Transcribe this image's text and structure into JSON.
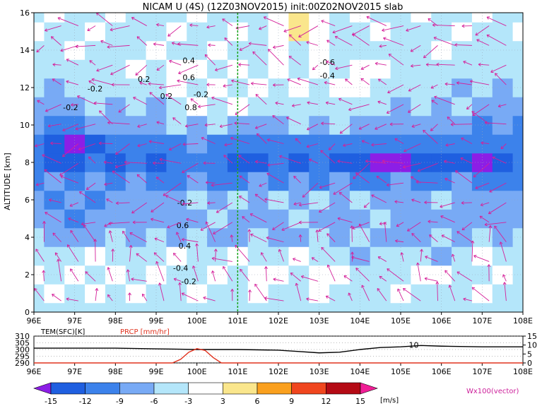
{
  "title": "NICAM U (4S) (12Z03NOV2015) init:00Z02NOV2015 slab",
  "chart_data": [
    {
      "type": "heatmap",
      "title": "NICAM U (4S) (12Z03NOV2015) init:00Z02NOV2015 slab",
      "ylabel": "ALTITUDE [km]",
      "xlim": [
        96,
        108
      ],
      "ylim": [
        0,
        16
      ],
      "x_ticks": [
        "96E",
        "97E",
        "98E",
        "99E",
        "100E",
        "101E",
        "102E",
        "103E",
        "104E",
        "105E",
        "106E",
        "107E",
        "108E"
      ],
      "y_ticks": [
        "0",
        "2",
        "4",
        "6",
        "8",
        "10",
        "12",
        "14",
        "16"
      ],
      "grid": true,
      "vertical_line_x": 101,
      "vector_legend": "Wx100(vector)",
      "contour_labels": [
        {
          "text": "-0.2",
          "x": 96.9,
          "y": 10.8
        },
        {
          "text": "-0.2",
          "x": 97.5,
          "y": 11.8
        },
        {
          "text": "0.2",
          "x": 98.7,
          "y": 12.3
        },
        {
          "text": "0.2",
          "x": 99.25,
          "y": 11.4
        },
        {
          "text": "0.4",
          "x": 99.8,
          "y": 13.3
        },
        {
          "text": "0.6",
          "x": 99.8,
          "y": 12.4
        },
        {
          "text": "-0.2",
          "x": 100.1,
          "y": 11.5
        },
        {
          "text": "0.8",
          "x": 99.85,
          "y": 10.8
        },
        {
          "text": "-0.6",
          "x": 103.2,
          "y": 13.2
        },
        {
          "text": "-0.4",
          "x": 103.2,
          "y": 12.5
        },
        {
          "text": "-0.2",
          "x": 99.7,
          "y": 5.7
        },
        {
          "text": "0.6",
          "x": 99.65,
          "y": 4.5
        },
        {
          "text": "0.4",
          "x": 99.7,
          "y": 3.4
        },
        {
          "text": "-0.4",
          "x": 99.6,
          "y": 2.2
        },
        {
          "text": "-0.2",
          "x": 99.8,
          "y": 1.5
        }
      ],
      "colorbar": {
        "levels": [
          -15,
          -12,
          -9,
          -6,
          -3,
          3,
          6,
          9,
          12,
          15
        ],
        "colors": [
          "#8c1ee6",
          "#1f5fe0",
          "#3c82eb",
          "#78aaf5",
          "#b4e6fa",
          "#ffffff",
          "#fae68c",
          "#faa01e",
          "#f0461e",
          "#b40a14",
          "#f01e96"
        ],
        "unit": "[m/s]"
      },
      "u_field": {
        "x": [
          96,
          96.5,
          97,
          97.5,
          98,
          98.5,
          99,
          99.5,
          100,
          100.5,
          101,
          101.5,
          102,
          102.5,
          103,
          103.5,
          104,
          104.5,
          105,
          105.5,
          106,
          106.5,
          107,
          107.5,
          108
        ],
        "y": [
          0,
          1,
          2,
          3,
          4,
          5,
          6,
          7,
          8,
          9,
          10,
          11,
          12,
          13,
          14,
          15,
          16
        ],
        "rows": [
          [
            -5,
            -4,
            -5,
            -6,
            -5,
            -4,
            -5,
            -6,
            -5,
            -4,
            -5,
            -5,
            -4,
            -5,
            -5,
            -4,
            -5,
            -5,
            -4,
            -5,
            -5,
            -4,
            -5,
            -4,
            -4
          ],
          [
            -4,
            -2,
            -5,
            -2,
            -4,
            -2,
            -5,
            -4,
            -2,
            -5,
            -4,
            -2,
            -4,
            -5,
            -2,
            -4,
            -5,
            -4,
            -2,
            -4,
            -5,
            -4,
            -2,
            -4,
            -5
          ],
          [
            -2,
            -4,
            -2,
            -5,
            -2,
            -4,
            -2,
            -4,
            -5,
            -2,
            -4,
            -2,
            -2,
            -4,
            -2,
            -2,
            -4,
            -5,
            -4,
            -2,
            -2,
            -4,
            -5,
            -2,
            -4
          ],
          [
            -4,
            -5,
            -4,
            -2,
            -5,
            -4,
            -5,
            -2,
            -4,
            -5,
            -2,
            -4,
            -5,
            -2,
            -4,
            -5,
            -7,
            -5,
            -4,
            -5,
            -7,
            -4,
            -2,
            -4,
            -5
          ],
          [
            -5,
            -7,
            -8,
            -7,
            -5,
            -7,
            -5,
            -7,
            -5,
            -7,
            -7,
            -5,
            -7,
            -8,
            -5,
            -7,
            -5,
            -7,
            -8,
            -7,
            -5,
            -7,
            -5,
            -7,
            -5
          ],
          [
            -7,
            -8,
            -10,
            -8,
            -7,
            -8,
            -7,
            -8,
            -7,
            -5,
            -7,
            -8,
            -7,
            -5,
            -7,
            -8,
            -7,
            -5,
            -7,
            -8,
            -7,
            -7,
            -8,
            -7,
            -7
          ],
          [
            -8,
            -10,
            -8,
            -10,
            -8,
            -7,
            -8,
            -7,
            -5,
            -7,
            -5,
            -7,
            -5,
            -7,
            -5,
            -7,
            -5,
            -7,
            -8,
            -7,
            -5,
            -7,
            -8,
            -7,
            -8
          ],
          [
            -10,
            -8,
            -10,
            -8,
            -10,
            -8,
            -10,
            -10,
            -8,
            -10,
            -10,
            -8,
            -10,
            -8,
            -10,
            -8,
            -10,
            -10,
            -8,
            -10,
            -10,
            -8,
            -10,
            -10,
            -10
          ],
          [
            -12,
            -13,
            -13,
            -12,
            -13,
            -11,
            -13,
            -11,
            -10,
            -11,
            -13,
            -13,
            -11,
            -13,
            -12,
            -13,
            -13,
            -16,
            -16,
            -13,
            -13,
            -13,
            -16,
            -13,
            -12
          ],
          [
            -10,
            -13,
            -16,
            -13,
            -12,
            -10,
            -11,
            -10,
            -8,
            -10,
            -11,
            -10,
            -11,
            -10,
            -11,
            -10,
            -11,
            -10,
            -11,
            -10,
            -11,
            -10,
            -11,
            -10,
            -11
          ],
          [
            -8,
            -10,
            -10,
            -8,
            -7,
            -8,
            -7,
            -5,
            -7,
            -5,
            -7,
            -8,
            -7,
            -5,
            -7,
            -5,
            -7,
            -8,
            -7,
            -8,
            -7,
            -8,
            -10,
            -8,
            -10
          ],
          [
            -7,
            -8,
            -7,
            -5,
            -7,
            -5,
            -7,
            -5,
            -2,
            -5,
            -2,
            -5,
            -4,
            -5,
            -4,
            -5,
            -4,
            -5,
            -7,
            -5,
            -7,
            -5,
            -7,
            -8,
            -7
          ],
          [
            -5,
            -7,
            -5,
            -4,
            -5,
            -4,
            -5,
            -2,
            -4,
            -2,
            -4,
            -2,
            -4,
            -2,
            -4,
            -2,
            -2,
            -4,
            -5,
            -4,
            -5,
            -7,
            -5,
            -7,
            -5
          ],
          [
            -4,
            -5,
            -4,
            -5,
            -4,
            -2,
            -4,
            -2,
            -2,
            -4,
            -2,
            -4,
            -2,
            -4,
            -2,
            -4,
            -2,
            -2,
            -4,
            -5,
            -4,
            -5,
            -4,
            -5,
            -4
          ],
          [
            -4,
            -5,
            -2,
            -4,
            -5,
            -4,
            -2,
            -5,
            -4,
            -2,
            -4,
            -5,
            -2,
            -4,
            -2,
            -5,
            -4,
            -4,
            -5,
            -4,
            -2,
            -4,
            -5,
            -4,
            -5
          ],
          [
            -2,
            -4,
            -5,
            -2,
            -4,
            -5,
            -4,
            -2,
            -4,
            -5,
            -2,
            -4,
            -2,
            4,
            -2,
            -4,
            -5,
            -2,
            -4,
            -5,
            -4,
            -2,
            -4,
            -5,
            -2
          ],
          [
            -4,
            -2,
            -4,
            -5,
            -2,
            -4,
            -5,
            -4,
            -2,
            -4,
            -5,
            -4,
            -2,
            4,
            -2,
            -4,
            -2,
            -4,
            -5,
            -2,
            -4,
            -5,
            -2,
            -4,
            -5
          ]
        ]
      }
    },
    {
      "type": "line",
      "series": [
        {
          "name": "TEM(SFC)[K]",
          "color": "#000000",
          "x": [
            96,
            97,
            98,
            99,
            100,
            101,
            102,
            102.5,
            103,
            103.5,
            104,
            104.5,
            105,
            105.5,
            106,
            107,
            108
          ],
          "y": [
            301,
            301,
            301,
            300.5,
            300,
            300,
            299.5,
            298.5,
            297.5,
            298,
            300,
            301.5,
            302,
            303,
            302.5,
            302,
            302
          ]
        },
        {
          "name": "PRCP [mm/hr]",
          "color": "#e0331f",
          "x": [
            96,
            99.4,
            99.6,
            99.8,
            100,
            100.2,
            100.4,
            100.6,
            108
          ],
          "y": [
            0,
            0,
            2,
            6,
            8,
            7,
            3,
            0,
            0
          ]
        }
      ],
      "left_axis": {
        "ticks": [
          "290",
          "295",
          "300",
          "305",
          "310"
        ],
        "range": [
          290,
          310
        ]
      },
      "right_axis": {
        "ticks": [
          "0",
          "5",
          "10",
          "15"
        ],
        "range": [
          0,
          15
        ]
      },
      "x_ticks": [
        "96E",
        "97E",
        "98E",
        "99E",
        "100E",
        "101E",
        "102E",
        "103E",
        "104E",
        "105E",
        "106E",
        "107E",
        "108E"
      ],
      "xlim": [
        96,
        108
      ],
      "annotation": {
        "text": "10",
        "x": 105.2,
        "y": 10
      }
    }
  ]
}
